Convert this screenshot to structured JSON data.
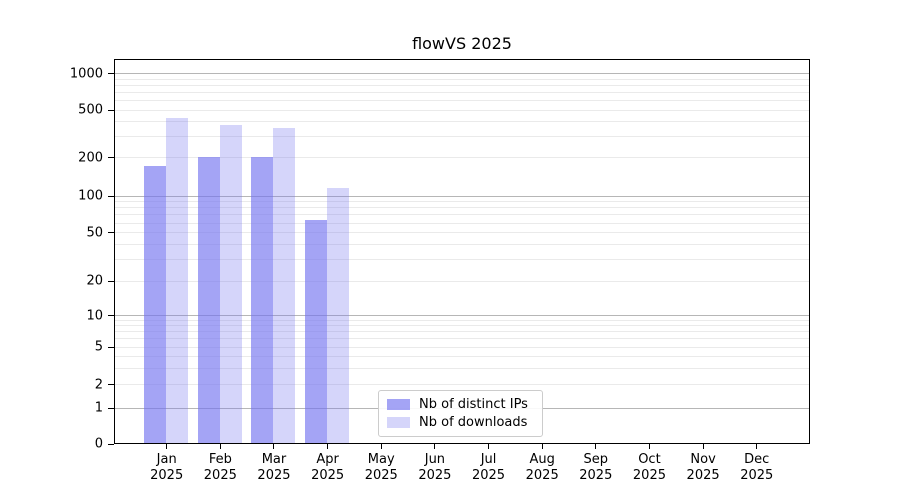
{
  "title": "flowVS 2025",
  "chart_data": {
    "type": "bar",
    "title": "flowVS 2025",
    "categories": [
      "Jan",
      "Feb",
      "Mar",
      "Apr",
      "May",
      "Jun",
      "Jul",
      "Aug",
      "Sep",
      "Oct",
      "Nov",
      "Dec"
    ],
    "category_year": "2025",
    "series": [
      {
        "name": "Nb of distinct IPs",
        "color_hex": "#7373f0",
        "alpha": 0.65,
        "values": [
          172,
          202,
          202,
          63,
          0,
          0,
          0,
          0,
          0,
          0,
          0,
          0
        ]
      },
      {
        "name": "Nb of downloads",
        "color_hex": "#7373f0",
        "alpha": 0.3,
        "values": [
          425,
          372,
          356,
          115,
          0,
          0,
          0,
          0,
          0,
          0,
          0,
          0
        ]
      }
    ],
    "y_ticks": [
      0,
      1,
      2,
      5,
      10,
      20,
      50,
      100,
      200,
      500,
      1000
    ],
    "yscale": "symlog",
    "ylim": [
      0,
      1400
    ],
    "xlabel": "",
    "ylabel": "",
    "grid": true,
    "legend_position": "lower center"
  },
  "colors": {
    "bar_distinct_ips": "rgba(115,115,240,0.65)",
    "bar_downloads": "rgba(115,115,240,0.30)",
    "grid_major": "#b6b6b6",
    "grid_minor": "#eaeaea",
    "axis": "#000000",
    "legend_border": "#cccccc"
  }
}
